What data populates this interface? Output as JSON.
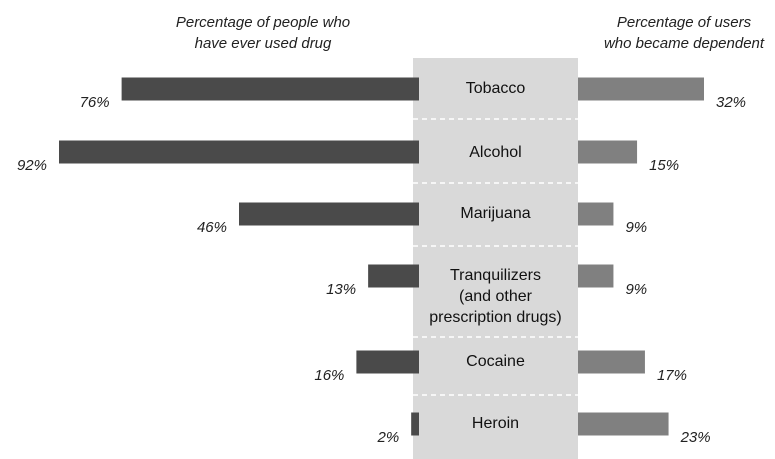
{
  "headings": {
    "left_line_1": "Percentage of people who",
    "left_line_2": "have ever used drug",
    "right_line_1": "Percentage of users",
    "right_line_2": "who became dependent"
  },
  "colors": {
    "ever_used_bar": "#4a4a4a",
    "dependent_bar": "#808080",
    "center_panel": "#d9d9d9",
    "divider": "#ffffff"
  },
  "chart_data": {
    "type": "bar",
    "categories": [
      [
        "Tobacco"
      ],
      [
        "Alcohol"
      ],
      [
        "Marijuana"
      ],
      [
        "Tranquilizers",
        "(and other",
        "prescription drugs)"
      ],
      [
        "Cocaine"
      ],
      [
        "Heroin"
      ]
    ],
    "series": [
      {
        "name": "Percentage of people who have ever used drug",
        "values": [
          76,
          92,
          46,
          13,
          16,
          2
        ],
        "labels": [
          "76%",
          "92%",
          "46%",
          "13%",
          "16%",
          "2%"
        ]
      },
      {
        "name": "Percentage of users who became dependent",
        "values": [
          32,
          15,
          9,
          9,
          17,
          23
        ],
        "labels": [
          "32%",
          "15%",
          "9%",
          "9%",
          "17%",
          "23%"
        ]
      }
    ]
  }
}
